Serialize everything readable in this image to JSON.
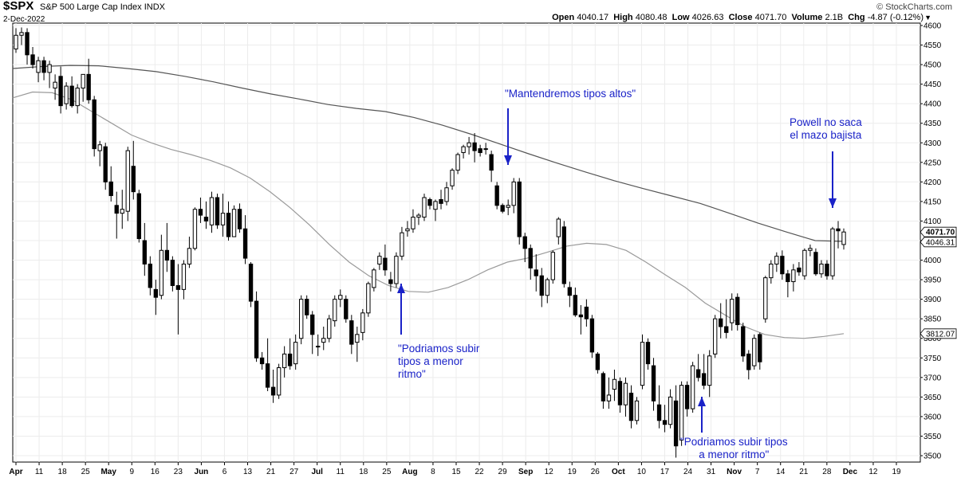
{
  "header": {
    "symbol": "$SPX",
    "name": "S&P 500 Large Cap Index",
    "exchange": "INDX",
    "date": "2-Dec-2022",
    "brand": "© StockCharts.com",
    "open_label": "Open",
    "open": "4040.17",
    "high_label": "High",
    "high": "4080.48",
    "low_label": "Low",
    "low": "4026.63",
    "close_label": "Close",
    "close": "4071.70",
    "volume_label": "Volume",
    "volume": "2.1B",
    "chg_label": "Chg",
    "chg": "-4.87 (-0.12%)"
  },
  "annotations": [
    {
      "lines": [
        "\"Podriamos subir",
        "tipos a menor",
        "ritmo\""
      ]
    },
    {
      "lines": [
        "\"Mantendremos tipos altos\""
      ]
    },
    {
      "lines": [
        "\"Podriamos subir tipos",
        "a menor ritmo\""
      ]
    },
    {
      "lines": [
        "Powell no saca",
        "el mazo bajista"
      ]
    }
  ],
  "colors": {
    "annotation": "#1a22c8",
    "up_candle": "#ffffff",
    "down_candle": "#000000",
    "ma_long": "#555555",
    "ma_short": "#9a9a9a"
  },
  "chart_data": {
    "type": "candlestick",
    "title": "$SPX S&P 500 Large Cap Index INDX",
    "y_ticks": [
      3500,
      3550,
      3600,
      3650,
      3700,
      3750,
      3800,
      3850,
      3900,
      3950,
      4000,
      4050,
      4100,
      4150,
      4200,
      4250,
      4300,
      4350,
      4400,
      4450,
      4500,
      4550,
      4600
    ],
    "ylim": [
      3490,
      4610
    ],
    "x_ticks": [
      "Apr",
      "11",
      "18",
      "25",
      "May",
      "9",
      "16",
      "23",
      "Jun",
      "6",
      "13",
      "21",
      "27",
      "Jul",
      "11",
      "18",
      "25",
      "Aug",
      "8",
      "15",
      "22",
      "29",
      "Sep",
      "12",
      "19",
      "26",
      "Oct",
      "10",
      "17",
      "24",
      "31",
      "Nov",
      "7",
      "14",
      "21",
      "28",
      "Dec",
      "12",
      "19"
    ],
    "major_ticks": [
      "Apr",
      "May",
      "Jun",
      "Jul",
      "Aug",
      "Sep",
      "Oct",
      "Nov",
      "Dec"
    ],
    "last_close_label": "4071.70",
    "ma_long_label": "4046.31",
    "ma_short_label": "3812.07",
    "candles": [
      [
        4540,
        4593,
        4530,
        4575
      ],
      [
        4575,
        4595,
        4550,
        4582
      ],
      [
        4582,
        4593,
        4500,
        4525
      ],
      [
        4525,
        4545,
        4490,
        4500
      ],
      [
        4480,
        4520,
        4455,
        4510
      ],
      [
        4510,
        4520,
        4460,
        4480
      ],
      [
        4480,
        4510,
        4440,
        4500
      ],
      [
        4440,
        4475,
        4410,
        4455
      ],
      [
        4470,
        4495,
        4375,
        4395
      ],
      [
        4400,
        4455,
        4385,
        4445
      ],
      [
        4445,
        4470,
        4390,
        4395
      ],
      [
        4395,
        4450,
        4375,
        4440
      ],
      [
        4440,
        4475,
        4405,
        4475
      ],
      [
        4475,
        4515,
        4400,
        4410
      ],
      [
        4410,
        4420,
        4265,
        4285
      ],
      [
        4280,
        4305,
        4240,
        4295
      ],
      [
        4290,
        4300,
        4180,
        4200
      ],
      [
        4200,
        4240,
        4150,
        4165
      ],
      [
        4140,
        4175,
        4055,
        4120
      ],
      [
        4120,
        4180,
        4080,
        4130
      ],
      [
        4125,
        4290,
        4100,
        4280
      ],
      [
        4240,
        4305,
        4155,
        4175
      ],
      [
        4170,
        4180,
        4045,
        4055
      ],
      [
        4050,
        4095,
        3960,
        3990
      ],
      [
        3990,
        4010,
        3910,
        3930
      ],
      [
        3925,
        3950,
        3860,
        3905
      ],
      [
        3910,
        4065,
        3900,
        4025
      ],
      [
        4025,
        4095,
        3970,
        4000
      ],
      [
        4000,
        4010,
        3920,
        3935
      ],
      [
        3935,
        3990,
        3810,
        3925
      ],
      [
        3925,
        4000,
        3900,
        3990
      ],
      [
        3990,
        4060,
        3980,
        4030
      ],
      [
        4030,
        4135,
        4025,
        4130
      ],
      [
        4130,
        4160,
        4095,
        4115
      ],
      [
        4110,
        4150,
        4080,
        4100
      ],
      [
        4090,
        4175,
        4070,
        4160
      ],
      [
        4160,
        4170,
        4080,
        4090
      ],
      [
        4090,
        4170,
        4060,
        4120
      ],
      [
        4120,
        4150,
        4050,
        4060
      ],
      [
        4060,
        4140,
        4060,
        4130
      ],
      [
        4130,
        4145,
        4070,
        4080
      ],
      [
        4080,
        4115,
        3990,
        4005
      ],
      [
        3990,
        3995,
        3880,
        3895
      ],
      [
        3895,
        3920,
        3740,
        3750
      ],
      [
        3750,
        3765,
        3720,
        3735
      ],
      [
        3735,
        3800,
        3665,
        3675
      ],
      [
        3675,
        3720,
        3635,
        3655
      ],
      [
        3655,
        3735,
        3645,
        3725
      ],
      [
        3725,
        3780,
        3700,
        3760
      ],
      [
        3760,
        3800,
        3720,
        3730
      ],
      [
        3735,
        3810,
        3720,
        3790
      ],
      [
        3800,
        3910,
        3785,
        3900
      ],
      [
        3900,
        3910,
        3850,
        3860
      ],
      [
        3860,
        3870,
        3760,
        3810
      ],
      [
        3780,
        3810,
        3755,
        3780
      ],
      [
        3790,
        3830,
        3770,
        3800
      ],
      [
        3800,
        3860,
        3790,
        3850
      ],
      [
        3845,
        3910,
        3830,
        3900
      ],
      [
        3900,
        3925,
        3880,
        3910
      ],
      [
        3900,
        3910,
        3840,
        3850
      ],
      [
        3845,
        3860,
        3760,
        3785
      ],
      [
        3790,
        3830,
        3740,
        3810
      ],
      [
        3815,
        3875,
        3795,
        3865
      ],
      [
        3865,
        3945,
        3855,
        3940
      ],
      [
        3930,
        3980,
        3920,
        3975
      ],
      [
        3990,
        4020,
        3975,
        4010
      ],
      [
        4005,
        4040,
        3960,
        3975
      ],
      [
        3950,
        3970,
        3920,
        3940
      ],
      [
        3940,
        4020,
        3930,
        4010
      ],
      [
        4010,
        4085,
        4000,
        4070
      ],
      [
        4075,
        4100,
        4060,
        4080
      ],
      [
        4080,
        4130,
        4070,
        4110
      ],
      [
        4110,
        4120,
        4090,
        4115
      ],
      [
        4110,
        4170,
        4100,
        4160
      ],
      [
        4155,
        4160,
        4130,
        4140
      ],
      [
        4130,
        4155,
        4100,
        4150
      ],
      [
        4155,
        4180,
        4130,
        4145
      ],
      [
        4150,
        4200,
        4140,
        4185
      ],
      [
        4190,
        4235,
        4180,
        4230
      ],
      [
        4230,
        4275,
        4220,
        4270
      ],
      [
        4275,
        4295,
        4260,
        4290
      ],
      [
        4290,
        4315,
        4270,
        4300
      ],
      [
        4300,
        4325,
        4250,
        4280
      ],
      [
        4285,
        4295,
        4265,
        4275
      ],
      [
        4285,
        4300,
        4270,
        4285
      ],
      [
        4270,
        4280,
        4200,
        4230
      ],
      [
        4190,
        4200,
        4130,
        4140
      ],
      [
        4140,
        4145,
        4120,
        4125
      ],
      [
        4135,
        4155,
        4115,
        4140
      ],
      [
        4140,
        4210,
        4120,
        4200
      ],
      [
        4200,
        4210,
        4040,
        4060
      ],
      [
        4060,
        4070,
        3995,
        4030
      ],
      [
        4030,
        4040,
        3950,
        3980
      ],
      [
        3975,
        4015,
        3920,
        3960
      ],
      [
        3960,
        3980,
        3880,
        3910
      ],
      [
        3910,
        3955,
        3890,
        3950
      ],
      [
        3950,
        4025,
        3940,
        4020
      ],
      [
        4060,
        4110,
        4040,
        4105
      ],
      [
        4085,
        4100,
        3930,
        3940
      ],
      [
        3930,
        3945,
        3880,
        3910
      ],
      [
        3910,
        3930,
        3855,
        3860
      ],
      [
        3860,
        3885,
        3810,
        3855
      ],
      [
        3880,
        3900,
        3830,
        3850
      ],
      [
        3850,
        3860,
        3750,
        3765
      ],
      [
        3760,
        3765,
        3710,
        3720
      ],
      [
        3710,
        3715,
        3620,
        3640
      ],
      [
        3640,
        3700,
        3620,
        3655
      ],
      [
        3670,
        3720,
        3640,
        3695
      ],
      [
        3690,
        3700,
        3610,
        3630
      ],
      [
        3630,
        3700,
        3600,
        3685
      ],
      [
        3660,
        3680,
        3570,
        3590
      ],
      [
        3590,
        3650,
        3580,
        3640
      ],
      [
        3680,
        3810,
        3670,
        3790
      ],
      [
        3790,
        3800,
        3720,
        3735
      ],
      [
        3730,
        3750,
        3615,
        3640
      ],
      [
        3630,
        3680,
        3570,
        3590
      ],
      [
        3590,
        3630,
        3560,
        3580
      ],
      [
        3580,
        3670,
        3570,
        3650
      ],
      [
        3640,
        3680,
        3495,
        3525
      ],
      [
        3540,
        3690,
        3525,
        3680
      ],
      [
        3680,
        3690,
        3600,
        3620
      ],
      [
        3620,
        3740,
        3610,
        3730
      ],
      [
        3720,
        3760,
        3690,
        3700
      ],
      [
        3710,
        3760,
        3670,
        3680
      ],
      [
        3680,
        3770,
        3650,
        3755
      ],
      [
        3760,
        3860,
        3750,
        3850
      ],
      [
        3850,
        3890,
        3800,
        3830
      ],
      [
        3830,
        3900,
        3800,
        3815
      ],
      [
        3840,
        3915,
        3820,
        3900
      ],
      [
        3905,
        3915,
        3820,
        3835
      ],
      [
        3830,
        3840,
        3740,
        3755
      ],
      [
        3760,
        3770,
        3695,
        3720
      ],
      [
        3730,
        3810,
        3720,
        3800
      ],
      [
        3810,
        3815,
        3720,
        3740
      ],
      [
        3850,
        3960,
        3840,
        3955
      ],
      [
        3955,
        4000,
        3940,
        3990
      ],
      [
        3990,
        4020,
        3970,
        4010
      ],
      [
        4010,
        4025,
        3950,
        3965
      ],
      [
        3965,
        3975,
        3905,
        3945
      ],
      [
        3945,
        3990,
        3920,
        3975
      ],
      [
        3980,
        3995,
        3960,
        3970
      ],
      [
        3960,
        4030,
        3950,
        4025
      ],
      [
        4025,
        4040,
        4010,
        4030
      ],
      [
        4020,
        4030,
        3960,
        3965
      ],
      [
        3965,
        4000,
        3955,
        3990
      ],
      [
        3990,
        4000,
        3950,
        3960
      ],
      [
        3960,
        4085,
        3950,
        4080
      ],
      [
        4080,
        4100,
        4030,
        4075
      ],
      [
        4040,
        4081,
        4027,
        4072
      ]
    ],
    "ma_long": [
      4490,
      4495,
      4498,
      4497,
      4490,
      4482,
      4470,
      4456,
      4440,
      4425,
      4412,
      4398,
      4388,
      4380,
      4365,
      4345,
      4322,
      4297,
      4272,
      4248,
      4225,
      4203,
      4183,
      4164,
      4145,
      4120,
      4095,
      4072,
      4050,
      4048
    ],
    "ma_short": [
      4415,
      4430,
      4428,
      4410,
      4380,
      4350,
      4320,
      4300,
      4283,
      4270,
      4255,
      4236,
      4210,
      4175,
      4135,
      4090,
      4040,
      3995,
      3960,
      3935,
      3920,
      3918,
      3930,
      3950,
      3975,
      3995,
      4005,
      4020,
      4036,
      4043,
      4040,
      4025,
      3995,
      3962,
      3930,
      3890,
      3860,
      3830,
      3810,
      3802,
      3800,
      3805,
      3812
    ]
  }
}
